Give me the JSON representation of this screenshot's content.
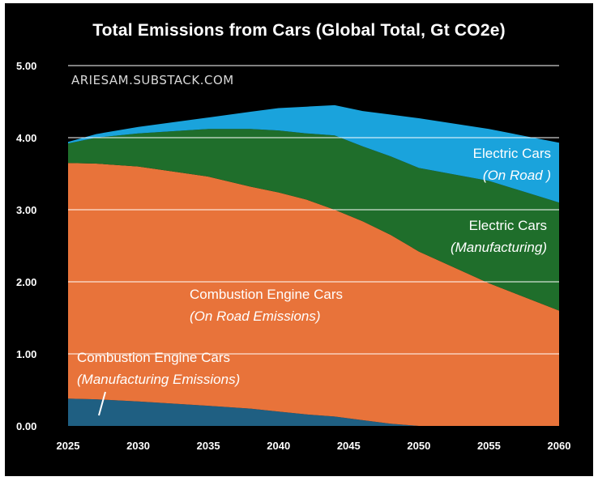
{
  "chart_data": {
    "type": "area",
    "stacked": true,
    "title": "Total Emissions from Cars (Global Total, Gt CO2e)",
    "watermark": "ARIESAM.SUBSTACK.COM",
    "xlabel": "",
    "ylabel": "",
    "xlim": [
      2025,
      2060
    ],
    "ylim": [
      0,
      5
    ],
    "x_ticks": [
      "2025",
      "2030",
      "2035",
      "2040",
      "2045",
      "2050",
      "2055",
      "2060"
    ],
    "y_ticks": [
      "0.00",
      "1.00",
      "2.00",
      "3.00",
      "4.00",
      "5.00"
    ],
    "grid": "horizontal",
    "x": [
      2025,
      2027,
      2030,
      2035,
      2038,
      2040,
      2042,
      2044,
      2046,
      2048,
      2050,
      2055,
      2060
    ],
    "series": [
      {
        "name": "Combustion Engine Cars (Manufacturing Emissions)",
        "color": "#1f5f82",
        "values": [
          0.38,
          0.37,
          0.34,
          0.28,
          0.24,
          0.2,
          0.16,
          0.13,
          0.08,
          0.03,
          0.0,
          0.0,
          0.0
        ]
      },
      {
        "name": "Combustion Engine Cars (On Road Emissions)",
        "color": "#e8733a",
        "values": [
          3.27,
          3.27,
          3.26,
          3.18,
          3.08,
          3.04,
          2.98,
          2.87,
          2.76,
          2.62,
          2.42,
          1.98,
          1.6
        ]
      },
      {
        "name": "Electric Cars (Manufacturing)",
        "color": "#1f6e2b",
        "values": [
          0.27,
          0.36,
          0.46,
          0.66,
          0.8,
          0.86,
          0.92,
          1.03,
          1.04,
          1.09,
          1.16,
          1.42,
          1.5
        ]
      },
      {
        "name": "Electric Cars (On Road)",
        "color": "#1aa3dc",
        "values": [
          0.02,
          0.05,
          0.09,
          0.16,
          0.24,
          0.31,
          0.37,
          0.42,
          0.49,
          0.58,
          0.69,
          0.72,
          0.83
        ]
      }
    ],
    "annotations": [
      {
        "series": 0,
        "line1": "Combustion Engine Cars",
        "line2": "(Manufacturing Emissions)"
      },
      {
        "series": 1,
        "line1": "Combustion Engine Cars",
        "line2": "(On Road Emissions)"
      },
      {
        "series": 2,
        "line1": "Electric Cars",
        "line2": "(Manufacturing)"
      },
      {
        "series": 3,
        "line1": "Electric Cars",
        "line2": "(On Road )"
      }
    ]
  }
}
